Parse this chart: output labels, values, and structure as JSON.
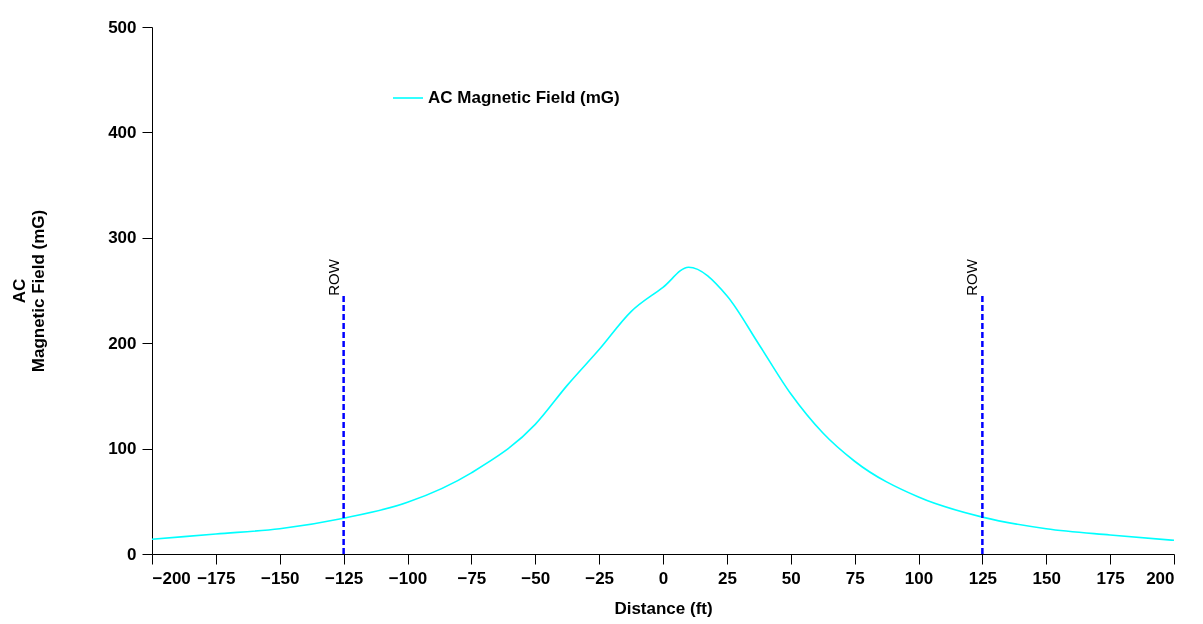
{
  "chart_data": {
    "type": "line",
    "xlabel": "Distance   (ft)",
    "ylabel": "AC\nMagnetic Field (mG)",
    "x": [
      -200,
      -175,
      -150,
      -125,
      -100,
      -75,
      -50,
      -37.5,
      -25,
      -12.5,
      0,
      10,
      25,
      37.5,
      50,
      62.5,
      75,
      100,
      125,
      150,
      175,
      200
    ],
    "series": [
      {
        "name": "AC Magnetic Field (mG)",
        "color": "#00ffff",
        "values": [
          14,
          19,
          24,
          34,
          49,
          77,
          123,
          160,
          194,
          230,
          253,
          272,
          245,
          199,
          152,
          115,
          88,
          54,
          35,
          24,
          18,
          13
        ]
      }
    ],
    "xlim": [
      -200,
      200
    ],
    "xticks": [
      -200,
      -175,
      -150,
      -125,
      -100,
      -75,
      -50,
      -25,
      0,
      25,
      50,
      75,
      100,
      125,
      150,
      175,
      200
    ],
    "ylim": [
      0,
      500
    ],
    "yticks": [
      0,
      100,
      200,
      300,
      400,
      500
    ],
    "ref_lines": [
      {
        "axis": "x",
        "value": -125,
        "label": "ROW",
        "color": "#0000ff",
        "line_style": "dashed"
      },
      {
        "axis": "x",
        "value": 125,
        "label": "ROW",
        "color": "#0000ff",
        "line_style": "dashed"
      }
    ],
    "grid": false,
    "legend": "top",
    "marker": "none",
    "line_style": "solid"
  }
}
